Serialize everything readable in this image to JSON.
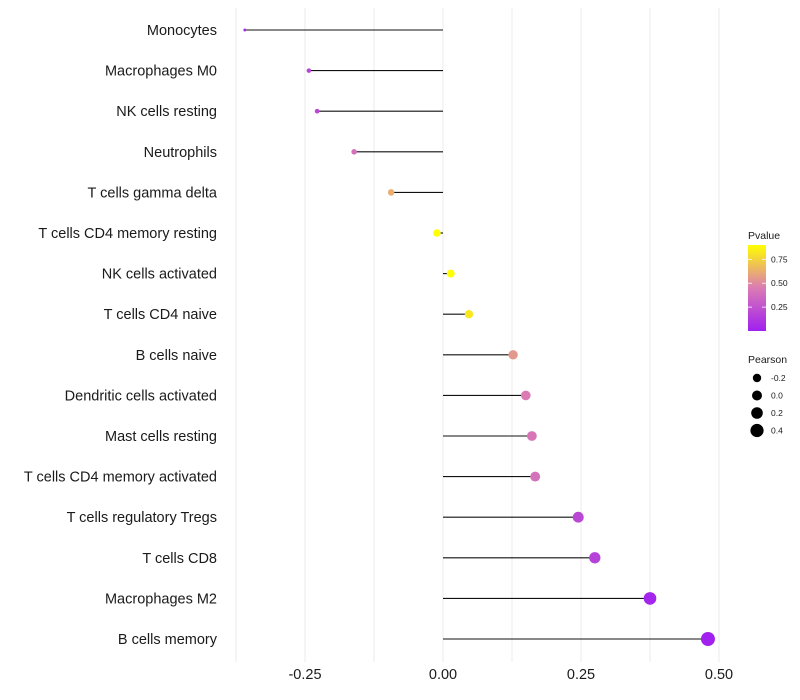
{
  "chart_data": {
    "type": "lollipop",
    "title": "",
    "xlabel": "",
    "ylabel": "",
    "xlim": [
      -0.375,
      0.5
    ],
    "xticks": [
      -0.25,
      0.0,
      0.25,
      0.5
    ],
    "xtick_labels": [
      "-0.25",
      "0.00",
      "0.25",
      "0.50"
    ],
    "grid": true,
    "baseline": 0,
    "categories": [
      "Monocytes",
      "Macrophages M0",
      "NK cells resting",
      "Neutrophils",
      "T cells gamma delta",
      "T cells CD4 memory resting",
      "NK cells activated",
      "T cells CD4 naive",
      "B cells naive",
      "Dendritic cells activated",
      "Mast cells resting",
      "T cells CD4 memory activated",
      "T cells regulatory  Tregs ",
      "T cells CD8",
      "Macrophages M2",
      "B cells memory"
    ],
    "pearson": [
      -0.359,
      -0.243,
      -0.228,
      -0.161,
      -0.094,
      -0.011,
      0.014,
      0.047,
      0.127,
      0.15,
      0.161,
      0.167,
      0.245,
      0.275,
      0.375,
      0.48
    ],
    "pvalue": [
      0.08,
      0.18,
      0.2,
      0.4,
      0.62,
      0.97,
      0.94,
      0.82,
      0.55,
      0.45,
      0.42,
      0.4,
      0.2,
      0.17,
      0.03,
      0.01
    ],
    "legend": {
      "placement": "right",
      "color": {
        "title": "Pvalue",
        "range": [
          0,
          0.9
        ],
        "ticks": [
          0.25,
          0.5,
          0.75
        ],
        "tick_labels": [
          "0.25",
          "0.50",
          "0.75"
        ],
        "low_color": "#A020F0",
        "mid_color": "#DB7BB4",
        "high_color": "#FFFF00"
      },
      "size": {
        "title": "Pearson",
        "values": [
          -0.2,
          0.0,
          0.2,
          0.4
        ],
        "labels": [
          "-0.2",
          "0.0",
          "0.2",
          "0.4"
        ]
      }
    }
  }
}
